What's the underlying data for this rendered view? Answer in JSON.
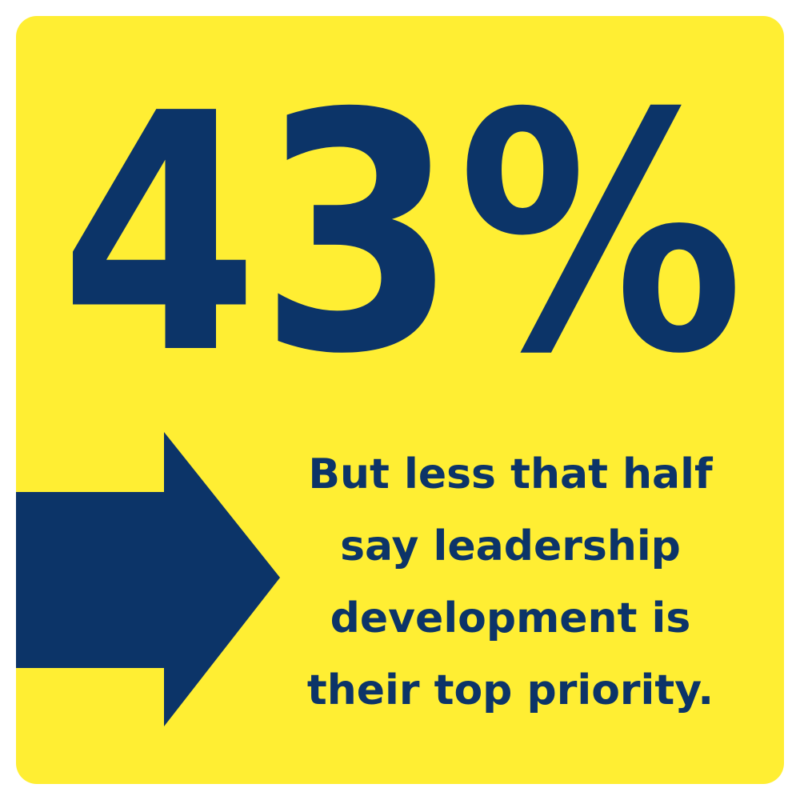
{
  "stat": "43%",
  "caption": [
    "But less that half",
    "say leadership",
    "development is",
    "their top priority."
  ]
}
